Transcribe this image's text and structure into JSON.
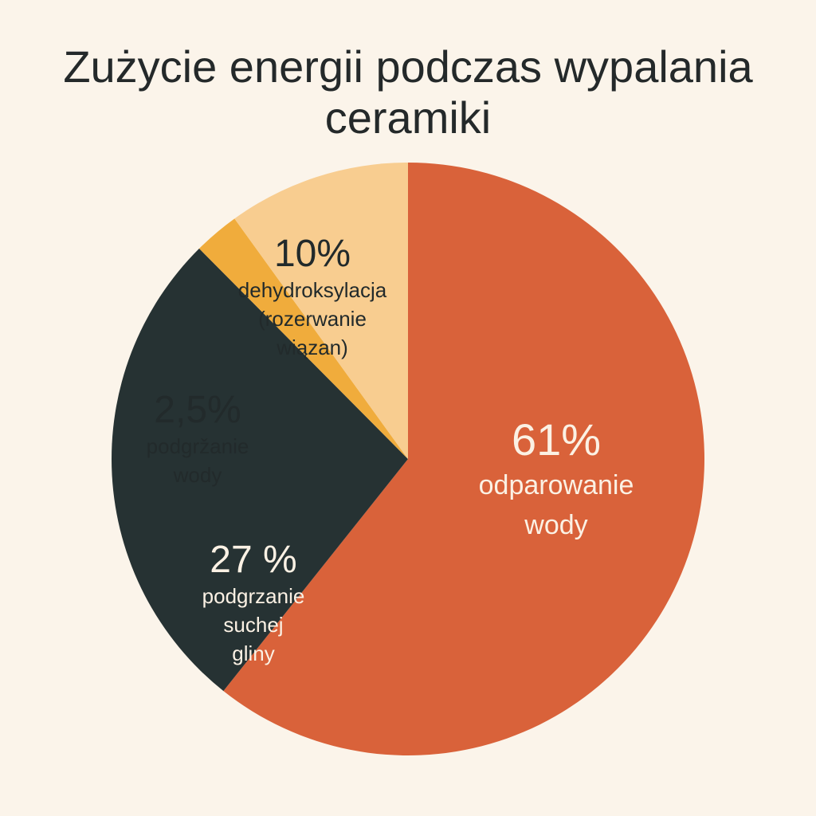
{
  "chart_data": {
    "type": "pie",
    "title": "Zużycie energii podczas wypalania ceramiki",
    "slices": [
      {
        "pct_label": "61%",
        "label_lines": [
          "odparowanie",
          "wody"
        ],
        "value": 61,
        "color": "#D9623A"
      },
      {
        "pct_label": "27 %",
        "label_lines": [
          "podgrzanie",
          "suchej",
          "gliny"
        ],
        "value": 27,
        "color": "#263233"
      },
      {
        "pct_label": "2,5%",
        "label_lines": [
          "podgržanie",
          "wody"
        ],
        "value": 2.5,
        "color": "#F0AC3C"
      },
      {
        "pct_label": "10%",
        "label_lines": [
          "dehydroksylacja",
          "(rozerwanie",
          "wiązan)"
        ],
        "value": 10,
        "color": "#F8CD90"
      }
    ],
    "start": "top",
    "direction": "clockwise"
  }
}
